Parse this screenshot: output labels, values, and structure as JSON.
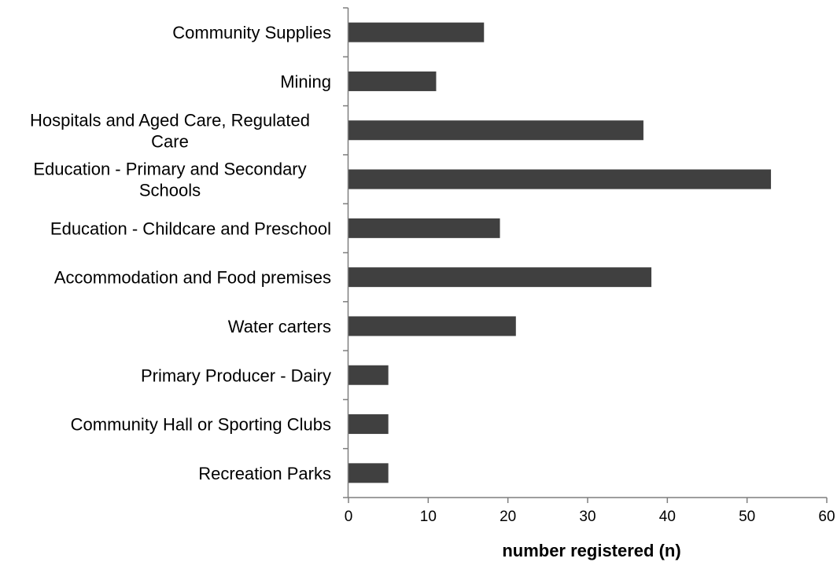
{
  "chart_data": {
    "type": "bar",
    "orientation": "horizontal",
    "categories": [
      [
        "Community Supplies"
      ],
      [
        "Mining"
      ],
      [
        "Hospitals and Aged Care, Regulated",
        "Care"
      ],
      [
        "Education - Primary and Secondary",
        "Schools"
      ],
      [
        "Education - Childcare and Preschool"
      ],
      [
        "Accommodation and Food premises"
      ],
      [
        "Water carters"
      ],
      [
        "Primary Producer - Dairy"
      ],
      [
        "Community Hall or Sporting Clubs"
      ],
      [
        "Recreation Parks"
      ]
    ],
    "values": [
      17,
      11,
      37,
      53,
      19,
      38,
      21,
      5,
      5,
      5
    ],
    "title": "",
    "xlabel": "number registered (n)",
    "ylabel": "",
    "xlim": [
      0,
      60
    ],
    "xticks": [
      0,
      10,
      20,
      30,
      40,
      50,
      60
    ],
    "grid": false,
    "bar_color": "#404040",
    "axis_color": "#7f7f7f"
  }
}
